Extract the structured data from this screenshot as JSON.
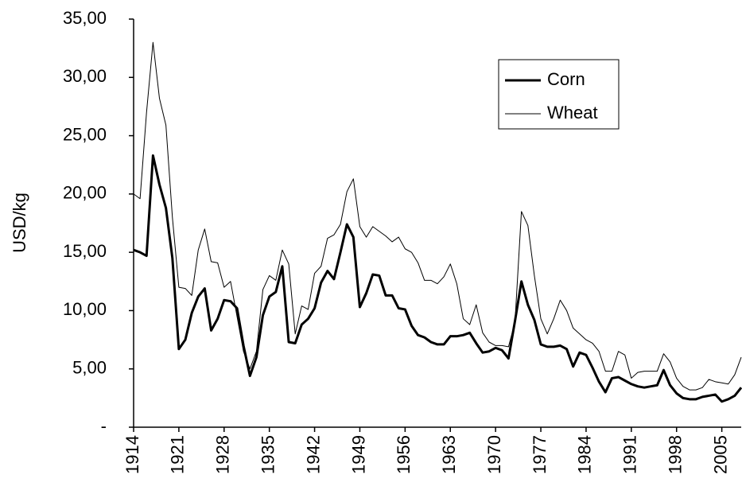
{
  "chart_data": {
    "type": "line",
    "y_label": "USD/kg",
    "x": [
      1914,
      1915,
      1916,
      1917,
      1918,
      1919,
      1920,
      1921,
      1922,
      1923,
      1924,
      1925,
      1926,
      1927,
      1928,
      1929,
      1930,
      1931,
      1932,
      1933,
      1934,
      1935,
      1936,
      1937,
      1938,
      1939,
      1940,
      1941,
      1942,
      1943,
      1944,
      1945,
      1946,
      1947,
      1948,
      1949,
      1950,
      1951,
      1952,
      1953,
      1954,
      1955,
      1956,
      1957,
      1958,
      1959,
      1960,
      1961,
      1962,
      1963,
      1964,
      1965,
      1966,
      1967,
      1968,
      1969,
      1970,
      1971,
      1972,
      1973,
      1974,
      1975,
      1976,
      1977,
      1978,
      1979,
      1980,
      1981,
      1982,
      1983,
      1984,
      1985,
      1986,
      1987,
      1988,
      1989,
      1990,
      1991,
      1992,
      1993,
      1994,
      1995,
      1996,
      1997,
      1998,
      1999,
      2000,
      2001,
      2002,
      2003,
      2004,
      2005,
      2006,
      2007,
      2008
    ],
    "series": [
      {
        "name": "Corn",
        "color": "#000000",
        "width": 3,
        "values": [
          15.2,
          15.0,
          14.7,
          23.3,
          20.8,
          18.8,
          14.5,
          6.7,
          7.5,
          9.8,
          11.2,
          11.9,
          8.3,
          9.3,
          10.9,
          10.8,
          10.2,
          7.0,
          4.4,
          6.0,
          9.6,
          11.2,
          11.6,
          13.8,
          7.3,
          7.2,
          8.8,
          9.3,
          10.2,
          12.4,
          13.4,
          12.7,
          15.0,
          17.4,
          16.3,
          10.3,
          11.5,
          13.1,
          13.0,
          11.3,
          11.3,
          10.2,
          10.1,
          8.7,
          7.9,
          7.7,
          7.3,
          7.1,
          7.1,
          7.8,
          7.8,
          7.9,
          8.1,
          7.2,
          6.4,
          6.5,
          6.8,
          6.6,
          5.9,
          9.1,
          12.5,
          10.5,
          9.2,
          7.1,
          6.9,
          6.9,
          7.0,
          6.7,
          5.2,
          6.4,
          6.2,
          5.1,
          3.9,
          3.0,
          4.2,
          4.3,
          4.0,
          3.7,
          3.5,
          3.4,
          3.5,
          3.6,
          4.9,
          3.6,
          2.9,
          2.5,
          2.4,
          2.4,
          2.6,
          2.7,
          2.8,
          2.2,
          2.4,
          2.7,
          3.4
        ]
      },
      {
        "name": "Wheat",
        "color": "#000000",
        "width": 1,
        "values": [
          20.0,
          19.6,
          27.0,
          33.0,
          28.2,
          25.9,
          18.0,
          12.0,
          11.9,
          11.3,
          15.2,
          17.0,
          14.2,
          14.1,
          12.0,
          12.5,
          9.5,
          6.5,
          5.0,
          6.5,
          11.8,
          13.0,
          12.6,
          15.2,
          14.0,
          8.0,
          10.4,
          10.1,
          13.2,
          13.8,
          16.2,
          16.5,
          17.4,
          20.2,
          21.3,
          17.2,
          16.3,
          17.2,
          16.8,
          16.4,
          15.9,
          16.3,
          15.3,
          15.0,
          14.1,
          12.6,
          12.6,
          12.3,
          12.9,
          14.0,
          12.3,
          9.3,
          8.8,
          10.5,
          8.1,
          7.3,
          7.0,
          7.0,
          6.9,
          9.0,
          18.5,
          17.3,
          13.0,
          9.3,
          8.0,
          9.3,
          10.9,
          10.0,
          8.5,
          8.0,
          7.5,
          7.2,
          6.5,
          4.8,
          4.8,
          6.5,
          6.2,
          4.2,
          4.7,
          4.8,
          4.8,
          4.8,
          6.3,
          5.6,
          4.2,
          3.5,
          3.2,
          3.2,
          3.4,
          4.1,
          3.9,
          3.8,
          3.7,
          4.5,
          6.0
        ]
      }
    ],
    "xlim": [
      1914,
      2008
    ],
    "xticks": [
      1914,
      1921,
      1928,
      1935,
      1942,
      1949,
      1956,
      1963,
      1970,
      1977,
      1984,
      1991,
      1998,
      2005
    ],
    "ylim": [
      0,
      35
    ],
    "yticks": [
      {
        "value": 0,
        "label": "-"
      },
      {
        "value": 5,
        "label": "5,00"
      },
      {
        "value": 10,
        "label": "10,00"
      },
      {
        "value": 15,
        "label": "15,00"
      },
      {
        "value": 20,
        "label": "20,00"
      },
      {
        "value": 25,
        "label": "25,00"
      },
      {
        "value": 30,
        "label": "30,00"
      },
      {
        "value": 35,
        "label": "35,00"
      }
    ],
    "grid": false
  }
}
